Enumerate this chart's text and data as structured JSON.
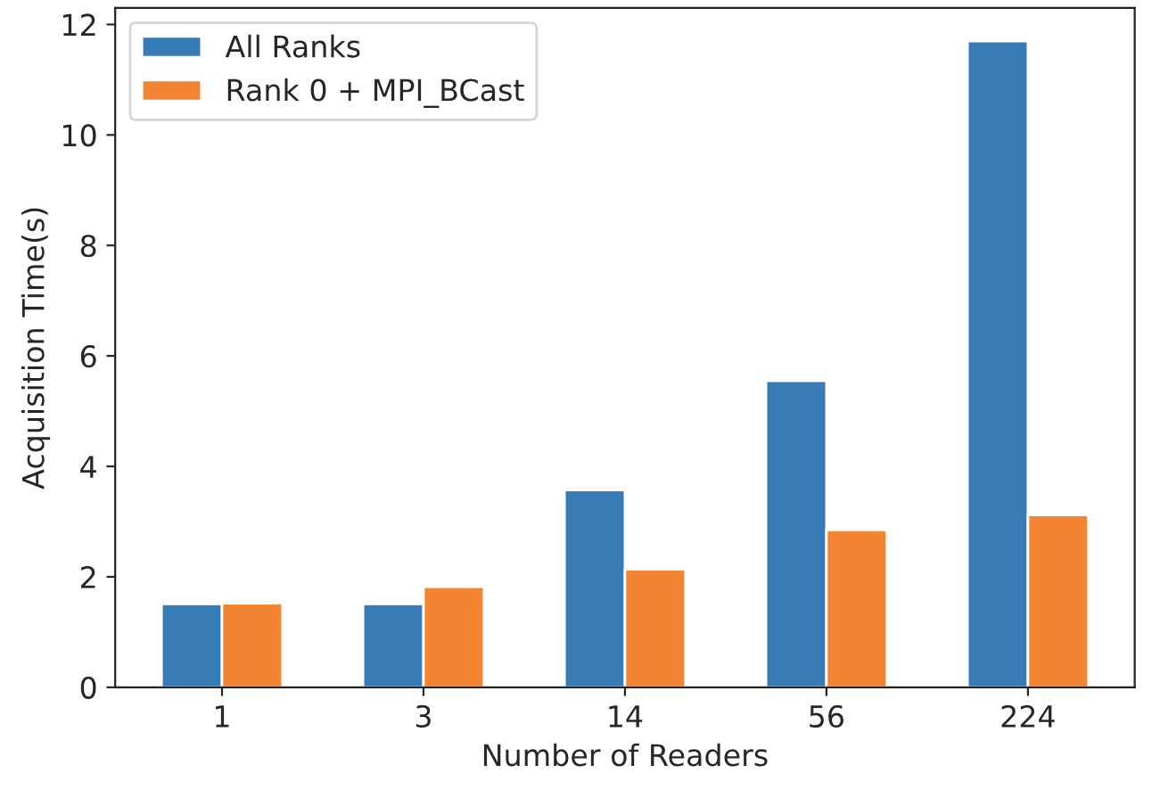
{
  "chart_data": {
    "type": "bar",
    "xlabel": "Number of Readers",
    "ylabel": "Acquisition Time(s)",
    "categories": [
      "1",
      "3",
      "14",
      "56",
      "224"
    ],
    "series": [
      {
        "name": "All Ranks",
        "color": "#367bb6",
        "values": [
          1.51,
          1.51,
          3.57,
          5.55,
          11.7
        ]
      },
      {
        "name": "Rank 0 + MPI_BCast",
        "color": "#f28434",
        "values": [
          1.52,
          1.82,
          2.14,
          2.85,
          3.12
        ]
      }
    ],
    "ylim": [
      0,
      12.3
    ],
    "yticks": [
      0,
      2,
      4,
      6,
      8,
      10,
      12
    ],
    "grid": false,
    "legend": "top left"
  }
}
